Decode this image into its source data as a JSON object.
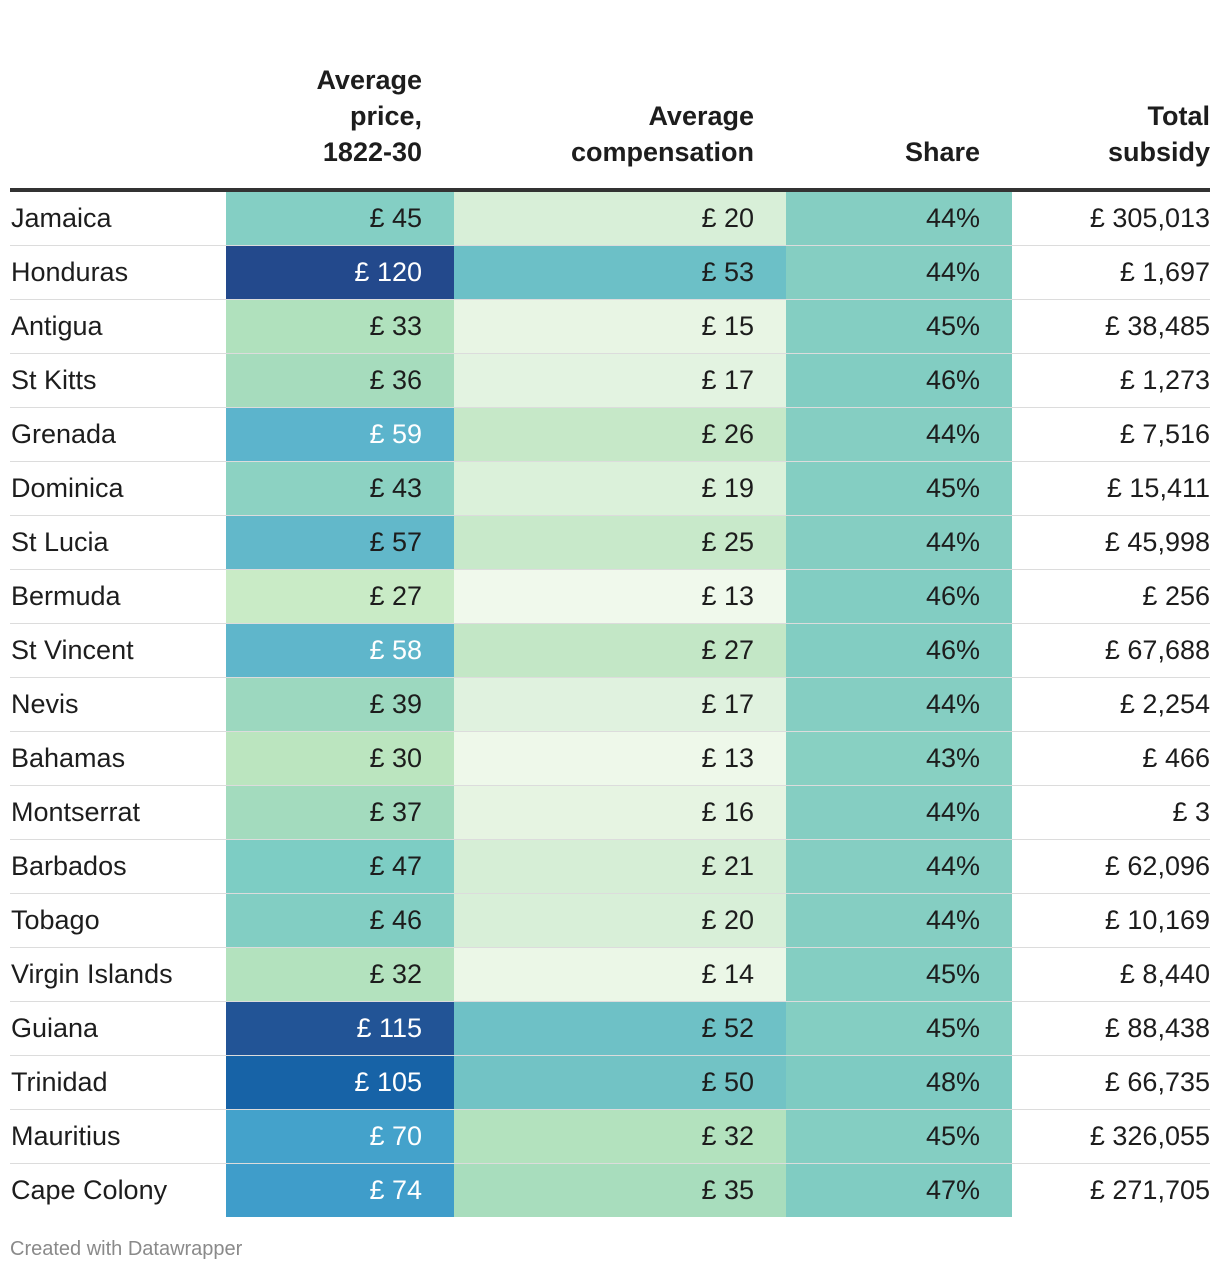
{
  "chart_data": {
    "type": "table",
    "columns": [
      "",
      "Average price, 1822-30",
      "Average compensation",
      "Share",
      "Total subsidy"
    ],
    "header_lines": [
      [],
      [
        "Average",
        "price,",
        "1822-30"
      ],
      [
        "Average",
        "compensation"
      ],
      [
        "Share"
      ],
      [
        "Total",
        "subsidy"
      ]
    ],
    "rows": [
      {
        "name": "Jamaica",
        "price": "£ 45",
        "comp": "£ 20",
        "share": "44%",
        "total": "£ 305,013",
        "price_bg": "#84cfc4",
        "comp_bg": "#d8efd8",
        "share_bg": "#85cec2",
        "price_light": false
      },
      {
        "name": "Honduras",
        "price": "£ 120",
        "comp": "£ 53",
        "share": "44%",
        "total": "£ 1,697",
        "price_bg": "#23498c",
        "comp_bg": "#6cc0c7",
        "share_bg": "#85cec2",
        "price_light": true
      },
      {
        "name": "Antigua",
        "price": "£ 33",
        "comp": "£ 15",
        "share": "45%",
        "total": "£ 38,485",
        "price_bg": "#b0e1bd",
        "comp_bg": "#e8f5e4",
        "share_bg": "#84cec2",
        "price_light": false
      },
      {
        "name": "St Kitts",
        "price": "£ 36",
        "comp": "£ 17",
        "share": "46%",
        "total": "£ 1,273",
        "price_bg": "#a6dcbd",
        "comp_bg": "#e3f3e1",
        "share_bg": "#82cdc2",
        "price_light": false
      },
      {
        "name": "Grenada",
        "price": "£ 59",
        "comp": "£ 26",
        "share": "44%",
        "total": "£ 7,516",
        "price_bg": "#5cb4cc",
        "comp_bg": "#c6e8c8",
        "share_bg": "#85cec2",
        "price_light": true
      },
      {
        "name": "Dominica",
        "price": "£ 43",
        "comp": "£ 19",
        "share": "45%",
        "total": "£ 15,411",
        "price_bg": "#8cd2c2",
        "comp_bg": "#dbf1da",
        "share_bg": "#84cec2",
        "price_light": false
      },
      {
        "name": "St Lucia",
        "price": "£ 57",
        "comp": "£ 25",
        "share": "44%",
        "total": "£ 45,998",
        "price_bg": "#62b8ca",
        "comp_bg": "#c8e9ca",
        "share_bg": "#85cec2",
        "price_light": false
      },
      {
        "name": "Bermuda",
        "price": "£ 27",
        "comp": "£ 13",
        "share": "46%",
        "total": "£ 256",
        "price_bg": "#c9ebc6",
        "comp_bg": "#f0f9ec",
        "share_bg": "#82cdc2",
        "price_light": false
      },
      {
        "name": "St Vincent",
        "price": "£ 58",
        "comp": "£ 27",
        "share": "46%",
        "total": "£ 67,688",
        "price_bg": "#5fb6cb",
        "comp_bg": "#c3e7c6",
        "share_bg": "#82cdc2",
        "price_light": true
      },
      {
        "name": "Nevis",
        "price": "£ 39",
        "comp": "£ 17",
        "share": "44%",
        "total": "£ 2,254",
        "price_bg": "#9cd8bf",
        "comp_bg": "#e0f2df",
        "share_bg": "#85cec2",
        "price_light": false
      },
      {
        "name": "Bahamas",
        "price": "£ 30",
        "comp": "£ 13",
        "share": "43%",
        "total": "£ 466",
        "price_bg": "#bbe5bf",
        "comp_bg": "#eef8ea",
        "share_bg": "#88d0c2",
        "price_light": false
      },
      {
        "name": "Montserrat",
        "price": "£ 37",
        "comp": "£ 16",
        "share": "44%",
        "total": "£ 3",
        "price_bg": "#a3dbbe",
        "comp_bg": "#e6f4e2",
        "share_bg": "#85cec2",
        "price_light": false
      },
      {
        "name": "Barbados",
        "price": "£ 47",
        "comp": "£ 21",
        "share": "44%",
        "total": "£ 62,096",
        "price_bg": "#7dcdc4",
        "comp_bg": "#d6eed6",
        "share_bg": "#85cec2",
        "price_light": false
      },
      {
        "name": "Tobago",
        "price": "£ 46",
        "comp": "£ 20",
        "share": "44%",
        "total": "£ 10,169",
        "price_bg": "#82cec3",
        "comp_bg": "#d8efd8",
        "share_bg": "#85cec2",
        "price_light": false
      },
      {
        "name": "Virgin Islands",
        "price": "£ 32",
        "comp": "£ 14",
        "share": "45%",
        "total": "£ 8,440",
        "price_bg": "#b3e2be",
        "comp_bg": "#ebf7e7",
        "share_bg": "#84cec2",
        "price_light": false
      },
      {
        "name": "Guiana",
        "price": "£ 115",
        "comp": "£ 52",
        "share": "45%",
        "total": "£ 88,438",
        "price_bg": "#225496",
        "comp_bg": "#6ec1c6",
        "share_bg": "#84cec2",
        "price_light": true
      },
      {
        "name": "Trinidad",
        "price": "£ 105",
        "comp": "£ 50",
        "share": "48%",
        "total": "£ 66,735",
        "price_bg": "#1763a7",
        "comp_bg": "#72c3c5",
        "share_bg": "#7ecbc2",
        "price_light": true
      },
      {
        "name": "Mauritius",
        "price": "£ 70",
        "comp": "£ 32",
        "share": "45%",
        "total": "£ 326,055",
        "price_bg": "#44a2cb",
        "comp_bg": "#b3e2be",
        "share_bg": "#84cec2",
        "price_light": true
      },
      {
        "name": "Cape Colony",
        "price": "£ 74",
        "comp": "£ 35",
        "share": "47%",
        "total": "£ 271,705",
        "price_bg": "#3f9dca",
        "comp_bg": "#a8ddbd",
        "share_bg": "#80ccc2",
        "price_light": true
      }
    ]
  },
  "footer": {
    "credit": "Created with Datawrapper"
  }
}
